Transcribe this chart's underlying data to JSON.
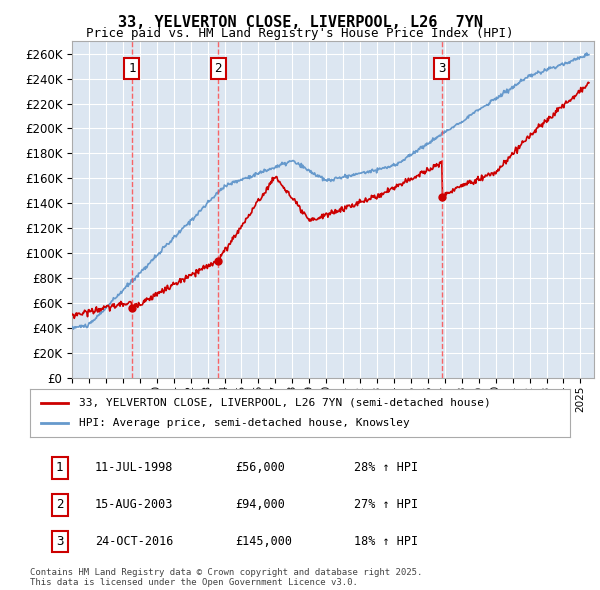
{
  "title": "33, YELVERTON CLOSE, LIVERPOOL, L26  7YN",
  "subtitle": "Price paid vs. HM Land Registry's House Price Index (HPI)",
  "ylabel": "",
  "ylim": [
    0,
    270000
  ],
  "yticks": [
    0,
    20000,
    40000,
    60000,
    80000,
    100000,
    120000,
    140000,
    160000,
    180000,
    200000,
    220000,
    240000,
    260000
  ],
  "bg_color": "#dce6f1",
  "plot_bg_color": "#dce6f1",
  "grid_color": "#ffffff",
  "sale_dates_num": [
    1998.53,
    2003.62,
    2016.82
  ],
  "sale_prices": [
    56000,
    94000,
    145000
  ],
  "sale_labels": [
    "1",
    "2",
    "3"
  ],
  "legend_property": "33, YELVERTON CLOSE, LIVERPOOL, L26 7YN (semi-detached house)",
  "legend_hpi": "HPI: Average price, semi-detached house, Knowsley",
  "table_rows": [
    [
      "1",
      "11-JUL-1998",
      "£56,000",
      "28% ↑ HPI"
    ],
    [
      "2",
      "15-AUG-2003",
      "£94,000",
      "27% ↑ HPI"
    ],
    [
      "3",
      "24-OCT-2016",
      "£145,000",
      "18% ↑ HPI"
    ]
  ],
  "footnote": "Contains HM Land Registry data © Crown copyright and database right 2025.\nThis data is licensed under the Open Government Licence v3.0.",
  "line_color_property": "#cc0000",
  "line_color_hpi": "#6699cc",
  "vline_color": "#ff0000",
  "marker_color": "#cc0000"
}
